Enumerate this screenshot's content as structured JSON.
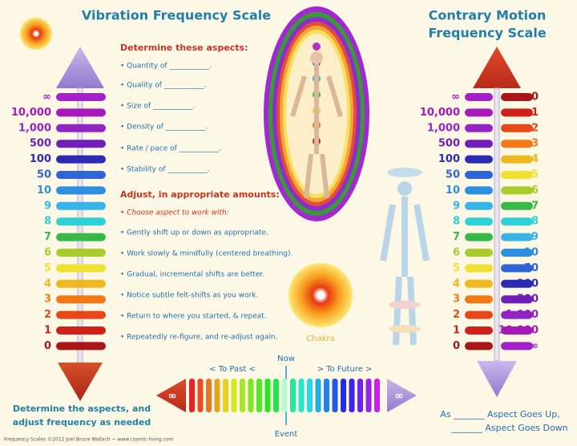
{
  "left_scale": {
    "title": "Vibration Frequency Scale",
    "rows": [
      {
        "label": "∞",
        "color": "#a321c9"
      },
      {
        "label": "10,000",
        "color": "#a818b8"
      },
      {
        "label": "1,000",
        "color": "#9224c4"
      },
      {
        "label": "500",
        "color": "#6f1fb8"
      },
      {
        "label": "100",
        "color": "#2a2ab4"
      },
      {
        "label": "50",
        "color": "#2f63d8"
      },
      {
        "label": "10",
        "color": "#2d8fe0"
      },
      {
        "label": "9",
        "color": "#38b4e8"
      },
      {
        "label": "8",
        "color": "#2ed0d8"
      },
      {
        "label": "7",
        "color": "#38b848"
      },
      {
        "label": "6",
        "color": "#a8cc2c"
      },
      {
        "label": "5",
        "color": "#f0e030"
      },
      {
        "label": "4",
        "color": "#f0b820"
      },
      {
        "label": "3",
        "color": "#f07a18"
      },
      {
        "label": "2",
        "color": "#e84818"
      },
      {
        "label": "1",
        "color": "#d02018"
      },
      {
        "label": "0",
        "color": "#a81818"
      }
    ]
  },
  "right_scale": {
    "title_lines": [
      "Contrary Motion",
      "Frequency Scale"
    ],
    "left_labels": [
      "∞",
      "10,000",
      "1,000",
      "500",
      "100",
      "50",
      "10",
      "9",
      "8",
      "7",
      "6",
      "5",
      "4",
      "3",
      "2",
      "1",
      "0"
    ],
    "right_labels": [
      "0",
      "1",
      "2",
      "3",
      "4",
      "5",
      "6",
      "7",
      "8",
      "9",
      "10",
      "50",
      "100",
      "500",
      "1,000",
      "10,000",
      "∞"
    ]
  },
  "aspects": {
    "heading": "Determine these aspects:",
    "items": [
      "• Quantity of ___________.",
      "• Quality of ___________.",
      "• Size of ___________.",
      "• Density of ___________.",
      "• Rate / pace of ___________.",
      "• Stability of ___________."
    ]
  },
  "adjust": {
    "heading": "Adjust, in appropriate amounts:",
    "choose": "• Choose aspect to work with:",
    "items": [
      "• Gently shift up or down as appropriate.",
      "• Work slowly & mindfully (centered breathing).",
      "• Gradual, incremental shifts are better.",
      "• Notice subtle felt-shifts as you work.",
      "• Return to where you started, & repeat.",
      "• Repeatedly re-figure, and re-adjust again."
    ]
  },
  "chakra_label": "Chakra",
  "timeline": {
    "past": "< To Past <",
    "future": "> To Future >",
    "now": "Now",
    "event": "Event",
    "left_end": "∞",
    "right_end": "∞"
  },
  "bottom_left": [
    "Determine the aspects, and",
    "adjust frequency as needed"
  ],
  "bottom_right": [
    "As _______ Aspect Goes Up,",
    "_______ Aspect Goes Down"
  ],
  "footer": "Frequency Scales ©2012 Joel Bruce Wallach ~ www.cosmic-living.com"
}
